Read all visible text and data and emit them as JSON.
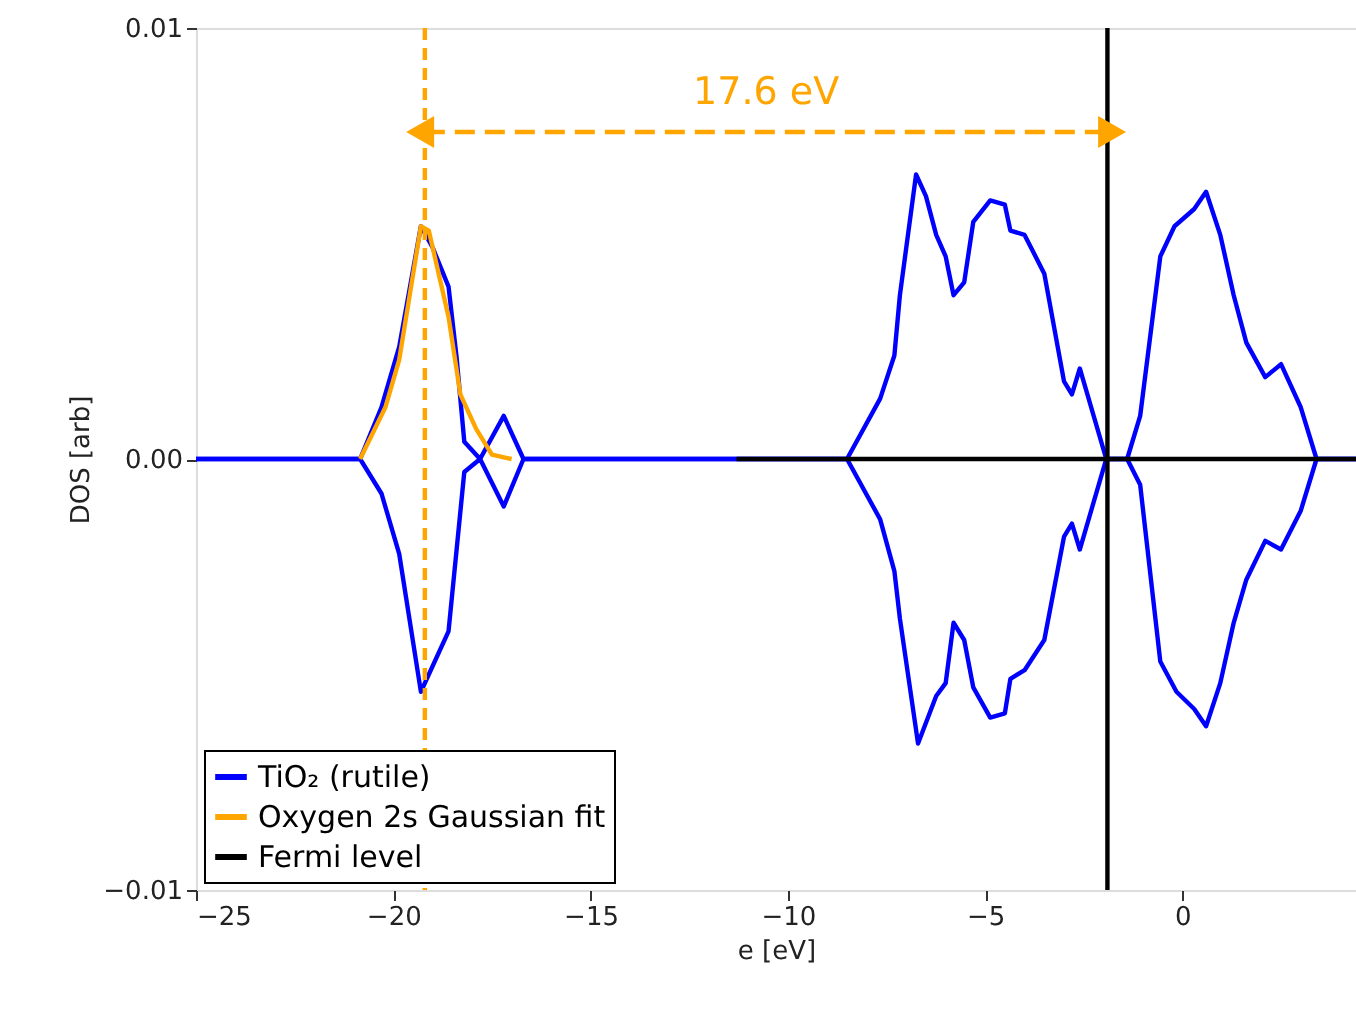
{
  "chart_data": {
    "type": "line",
    "xlabel": "e [eV]",
    "ylabel": "DOS [arb]",
    "xlim": [
      -25,
      4.4
    ],
    "ylim": [
      -0.01,
      0.01
    ],
    "xticks": [
      {
        "value": -25,
        "label": "−25"
      },
      {
        "value": -20,
        "label": "−20"
      },
      {
        "value": -15,
        "label": "−15"
      },
      {
        "value": -10,
        "label": "−10"
      },
      {
        "value": -5,
        "label": "−5"
      },
      0
    ],
    "yticks": [
      {
        "value": -0.01,
        "label": "−0.01"
      },
      {
        "value": 0,
        "label": "0.00"
      },
      {
        "value": 0.01,
        "label": "0.01"
      }
    ],
    "grid": false,
    "legend": "bottom left",
    "marker": "none",
    "series": [
      {
        "name": "TiO₂ (rutile)",
        "color": "#0000ff",
        "line_style": "solid",
        "x": [
          -25,
          -20.84,
          -20.3,
          -19.85,
          -19.3,
          -19.0,
          -18.6,
          -18.4,
          -18.2,
          -17.8,
          -17.2,
          -16.7,
          -8.5,
          -7.66,
          -7.3,
          -7.16,
          -6.75,
          -6.5,
          -6.24,
          -6.0,
          -5.8,
          -5.53,
          -5.3,
          -4.87,
          -4.5,
          -4.36,
          -4.0,
          -3.5,
          -3.0,
          -2.8,
          -2.6,
          -1.93,
          -1.4,
          -1.07,
          -0.56,
          -0.2,
          0.3,
          0.6,
          0.96,
          1.3,
          1.62,
          2.1,
          2.5,
          3.0,
          3.4,
          4.4
        ],
        "values": [
          0,
          0,
          0.0012,
          0.0026,
          0.0054,
          0.0049,
          0.004,
          0.0024,
          0.0004,
          0,
          0.001,
          0,
          0,
          0.0014,
          0.0024,
          0.0038,
          0.0066,
          0.0061,
          0.0052,
          0.0047,
          0.0038,
          0.0041,
          0.0055,
          0.006,
          0.0059,
          0.0053,
          0.0052,
          0.0043,
          0.0018,
          0.0015,
          0.0021,
          0,
          0,
          0.001,
          0.0047,
          0.0054,
          0.0058,
          0.0062,
          0.0052,
          0.0038,
          0.0027,
          0.0019,
          0.0022,
          0.0012,
          0,
          0
        ]
      },
      {
        "color": "#0000ff",
        "line_style": "solid",
        "x": [
          -25,
          -20.84,
          -20.3,
          -19.85,
          -19.3,
          -18.6,
          -18.2,
          -17.8,
          -17.2,
          -16.7,
          -8.5,
          -7.66,
          -7.3,
          -7.16,
          -6.7,
          -6.24,
          -6.0,
          -5.8,
          -5.53,
          -5.3,
          -4.87,
          -4.5,
          -4.36,
          -4.0,
          -3.5,
          -3.0,
          -2.8,
          -2.6,
          -1.93,
          -1.4,
          -1.07,
          -0.56,
          -0.15,
          0.3,
          0.6,
          0.96,
          1.3,
          1.62,
          2.1,
          2.5,
          3.0,
          3.4,
          4.4
        ],
        "values": [
          0,
          0,
          -0.0008,
          -0.0022,
          -0.0054,
          -0.004,
          -0.0003,
          0,
          -0.0011,
          0,
          0,
          -0.0014,
          -0.0026,
          -0.0037,
          -0.0066,
          -0.0055,
          -0.0052,
          -0.0038,
          -0.0042,
          -0.0053,
          -0.006,
          -0.0059,
          -0.0051,
          -0.0049,
          -0.0042,
          -0.0018,
          -0.0015,
          -0.0021,
          0,
          0,
          -0.0006,
          -0.0047,
          -0.0054,
          -0.0058,
          -0.0062,
          -0.0052,
          -0.0038,
          -0.0028,
          -0.0019,
          -0.0021,
          -0.0012,
          0,
          0
        ]
      },
      {
        "name": "Oxygen 2s Gaussian fit",
        "color": "#ffa500",
        "line_style": "solid",
        "x": [
          -20.84,
          -20.2,
          -19.85,
          -19.3,
          -19.1,
          -18.6,
          -18.3,
          -17.9,
          -17.5,
          -17.0
        ],
        "values": [
          0,
          0.0012,
          0.0023,
          0.0054,
          0.0053,
          0.0033,
          0.0015,
          0.0007,
          0.0001,
          0
        ]
      },
      {
        "color": "#000000",
        "line_style": "solid",
        "x": [
          -11.3,
          4.4
        ],
        "values": [
          0,
          0
        ]
      },
      {
        "name": "Fermi level",
        "color": "#000000",
        "line_style": "solid",
        "x": [
          -1.9,
          -1.9
        ],
        "values": [
          -0.01,
          0.01
        ]
      }
    ],
    "ref_lines": [
      {
        "axis": "x",
        "value": -19.2,
        "color": "#ffa500",
        "line_style": "dashed"
      }
    ],
    "annotations": [
      "17.6 eV"
    ]
  }
}
